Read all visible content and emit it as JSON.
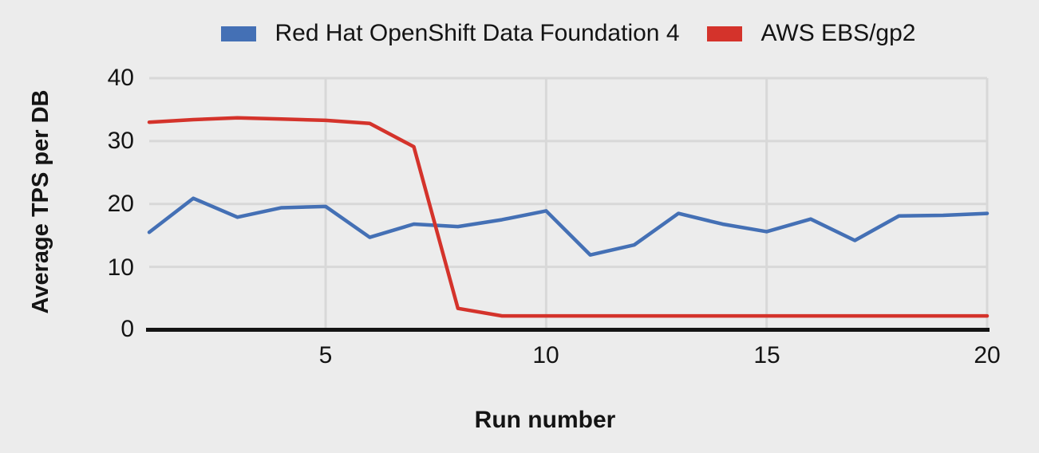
{
  "colors": {
    "background": "#ECECEC",
    "gridline": "#D8D8D8",
    "axis": "#141414",
    "text": "#141414"
  },
  "chart_data": {
    "type": "line",
    "title": "",
    "xlabel": "Run number",
    "ylabel": "Average TPS per DB",
    "xlim": [
      1,
      20
    ],
    "ylim": [
      0,
      40
    ],
    "grid": true,
    "legend_position": "top",
    "x": [
      1,
      2,
      3,
      4,
      5,
      6,
      7,
      8,
      9,
      10,
      11,
      12,
      13,
      14,
      15,
      16,
      17,
      18,
      19,
      20
    ],
    "xticks": [
      5,
      10,
      15,
      20
    ],
    "yticks": [
      40,
      30,
      20,
      10,
      0
    ],
    "xtick_labels": [
      "5",
      "10",
      "15",
      "20"
    ],
    "ytick_labels": [
      "40",
      "30",
      "20",
      "10",
      "0"
    ],
    "series": [
      {
        "name": "Red Hat OpenShift Data Foundation 4",
        "color": "#4470B5",
        "values": [
          15.5,
          20.9,
          17.9,
          19.4,
          19.6,
          14.7,
          16.8,
          16.4,
          17.5,
          18.9,
          11.9,
          13.5,
          18.5,
          16.8,
          15.6,
          17.6,
          14.2,
          18.1,
          18.2,
          18.5
        ]
      },
      {
        "name": "AWS EBS/gp2",
        "color": "#D4332B",
        "values": [
          33.0,
          33.4,
          33.7,
          33.5,
          33.3,
          32.8,
          29.1,
          3.4,
          2.2,
          2.2,
          2.2,
          2.2,
          2.2,
          2.2,
          2.2,
          2.2,
          2.2,
          2.2,
          2.2,
          2.2
        ]
      }
    ]
  }
}
